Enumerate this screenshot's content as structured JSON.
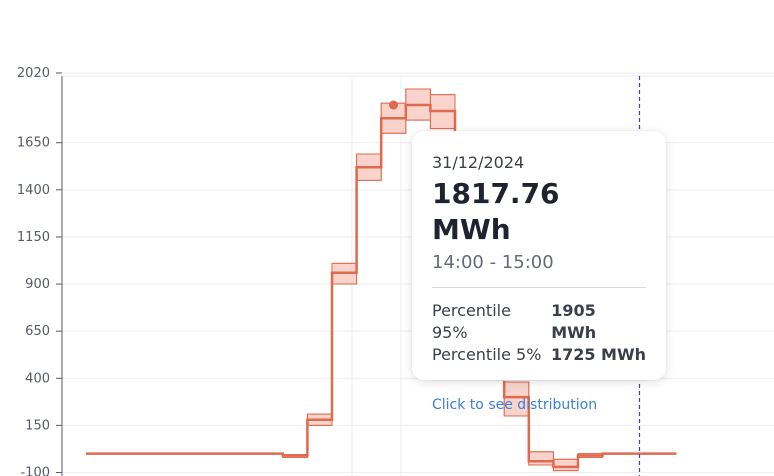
{
  "chart_data": {
    "type": "line",
    "step": true,
    "x_hours": [
      0,
      1,
      2,
      3,
      4,
      5,
      6,
      7,
      8,
      9,
      10,
      11,
      12,
      13,
      14,
      15,
      16,
      17,
      18,
      19,
      20,
      21,
      22,
      23
    ],
    "series": [
      {
        "values": [
          0,
          0,
          0,
          0,
          0,
          0,
          0,
          0,
          -10,
          180,
          960,
          1520,
          1780,
          1850,
          1818,
          1600,
          900,
          300,
          -40,
          -70,
          -10,
          0,
          0,
          0
        ]
      },
      {
        "values": [
          0,
          0,
          0,
          0,
          0,
          0,
          0,
          0,
          -5,
          210,
          1010,
          1590,
          1860,
          1935,
          1905,
          1680,
          950,
          380,
          10,
          -30,
          0,
          0,
          0,
          0
        ]
      },
      {
        "values": [
          0,
          0,
          0,
          0,
          0,
          0,
          0,
          0,
          -20,
          150,
          900,
          1450,
          1700,
          1770,
          1725,
          1520,
          850,
          200,
          -60,
          -90,
          -20,
          0,
          0,
          0
        ]
      }
    ],
    "y_ticks": [
      2020,
      1650,
      1400,
      1150,
      900,
      650,
      400,
      150,
      -100
    ],
    "ylim": [
      -100,
      2100
    ],
    "grid": true,
    "highlight": {
      "hour": 12.5,
      "value": 1850
    },
    "vline_dashed_hour": 22.5,
    "colors": {
      "line": "#e06a4e",
      "band": "#f7c6bb",
      "dashed": "#3b3bd0",
      "grid": "#eceef2"
    }
  },
  "tooltip": {
    "date": "31/12/2024",
    "value": "1817.76 MWh",
    "time_range": "14:00 - 15:00",
    "p95_label": "Percentile 95%",
    "p95_value": "1905 MWh",
    "p5_label": "Percentile 5%",
    "p5_value": "1725 MWh",
    "link": "Click to see distribution"
  }
}
